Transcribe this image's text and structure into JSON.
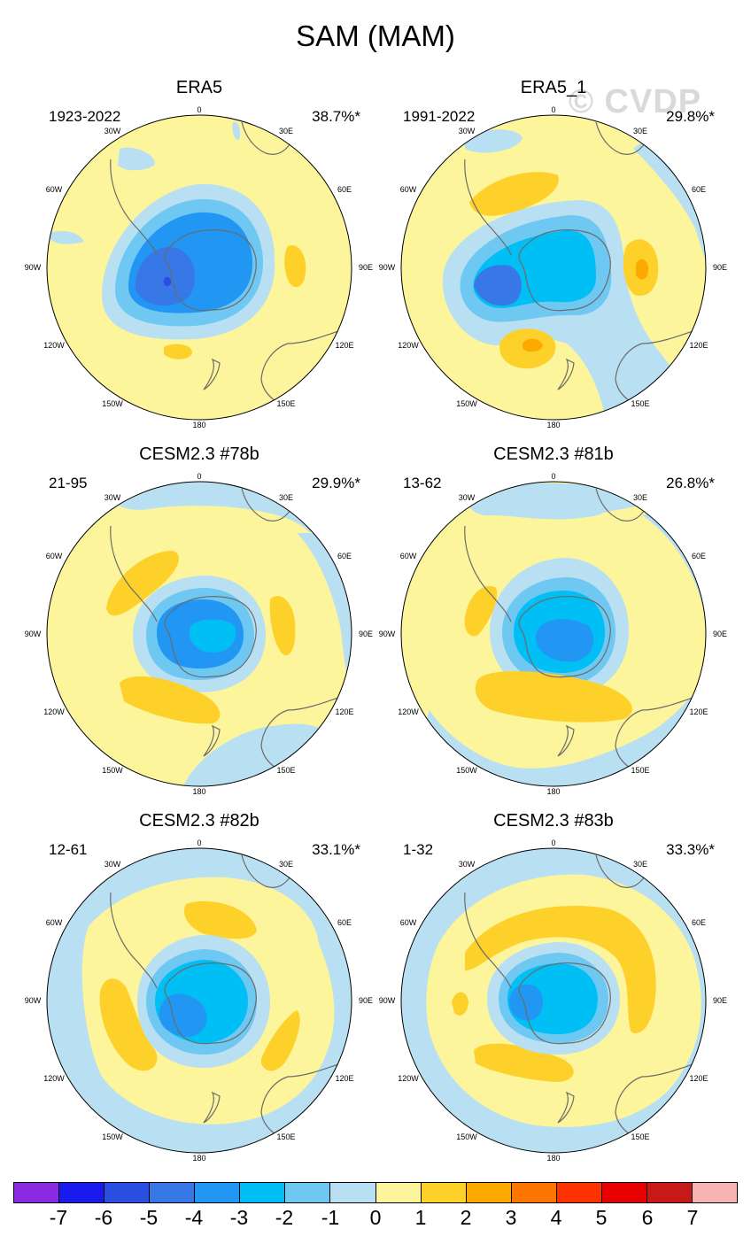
{
  "title": "SAM (MAM)",
  "watermark": "© CVDP",
  "colors": {
    "ocean_neutral": "#fdf59b",
    "land_outline": "#6b6b6b",
    "scale": [
      "#8a2be2",
      "#1a1aef",
      "#2a4fe0",
      "#3878e6",
      "#2196f3",
      "#00bff5",
      "#6ec8f2",
      "#b9e0f2",
      "#fdf59b",
      "#fdd02a",
      "#fcaa00",
      "#fc7600",
      "#fc3300",
      "#e60000",
      "#c81919",
      "#f7b3b3"
    ]
  },
  "longitude_labels": [
    "0",
    "30E",
    "60E",
    "90E",
    "120E",
    "150E",
    "180",
    "150W",
    "120W",
    "90W",
    "60W",
    "30W"
  ],
  "panels": [
    {
      "title": "ERA5",
      "period": "1923-2022",
      "percent": "38.7%*"
    },
    {
      "title": "ERA5_1",
      "period": "1991-2022",
      "percent": "29.8%*"
    },
    {
      "title": "CESM2.3 #78b",
      "period": "21-95",
      "percent": "29.9%*"
    },
    {
      "title": "CESM2.3 #81b",
      "period": "13-62",
      "percent": "26.8%*"
    },
    {
      "title": "CESM2.3 #82b",
      "period": "12-61",
      "percent": "33.1%*"
    },
    {
      "title": "CESM2.3 #83b",
      "period": "1-32",
      "percent": "33.3%*"
    }
  ],
  "colorbar": {
    "labels": [
      "-7",
      "-6",
      "-5",
      "-4",
      "-3",
      "-2",
      "-1",
      "0",
      "1",
      "2",
      "3",
      "4",
      "5",
      "6",
      "7"
    ]
  }
}
